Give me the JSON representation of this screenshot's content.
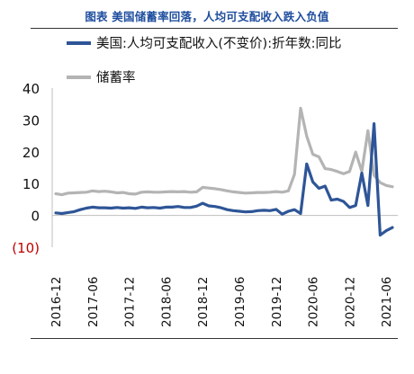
{
  "title": "图表  美国储蓄率回落，人均可支配收入跌入负值",
  "colors": {
    "title": "#1f4e9e",
    "income": "#2e5597",
    "saving": "#b4b4b4",
    "negative_tick": "#c00000",
    "axis": "#bfbfbf"
  },
  "chart_data": {
    "type": "line",
    "title": "",
    "xlabel": "",
    "ylabel": "",
    "ylim": [
      -10,
      40
    ],
    "yticks": [
      40,
      30,
      20,
      10,
      0,
      -10
    ],
    "ytick_labels": [
      "40",
      "30",
      "20",
      "10",
      "0",
      "(10)"
    ],
    "x_tick_labels": [
      "2016-12",
      "2017-06",
      "2017-12",
      "2018-06",
      "2018-12",
      "2019-06",
      "2019-12",
      "2020-06",
      "2020-12",
      "2021-06"
    ],
    "x": [
      "2016-12",
      "2017-01",
      "2017-02",
      "2017-03",
      "2017-04",
      "2017-05",
      "2017-06",
      "2017-07",
      "2017-08",
      "2017-09",
      "2017-10",
      "2017-11",
      "2017-12",
      "2018-01",
      "2018-02",
      "2018-03",
      "2018-04",
      "2018-05",
      "2018-06",
      "2018-07",
      "2018-08",
      "2018-09",
      "2018-10",
      "2018-11",
      "2018-12",
      "2019-01",
      "2019-02",
      "2019-03",
      "2019-04",
      "2019-05",
      "2019-06",
      "2019-07",
      "2019-08",
      "2019-09",
      "2019-10",
      "2019-11",
      "2019-12",
      "2020-01",
      "2020-02",
      "2020-03",
      "2020-04",
      "2020-05",
      "2020-06",
      "2020-07",
      "2020-08",
      "2020-09",
      "2020-10",
      "2020-11",
      "2020-12",
      "2021-01",
      "2021-02",
      "2021-03",
      "2021-04",
      "2021-05",
      "2021-06",
      "2021-07"
    ],
    "series": [
      {
        "name": "美国:人均可支配收入(不变价):折年数:同比",
        "values": [
          0.8,
          0.6,
          0.9,
          1.2,
          1.8,
          2.3,
          2.6,
          2.4,
          2.4,
          2.3,
          2.5,
          2.3,
          2.4,
          2.2,
          2.6,
          2.4,
          2.5,
          2.3,
          2.6,
          2.6,
          2.8,
          2.5,
          2.5,
          2.9,
          3.8,
          3.0,
          2.8,
          2.4,
          1.8,
          1.5,
          1.3,
          1.1,
          1.2,
          1.5,
          1.6,
          1.5,
          1.9,
          0.4,
          1.3,
          1.8,
          0.6,
          16.2,
          10.5,
          8.5,
          9.2,
          4.8,
          5.1,
          4.4,
          2.5,
          3.1,
          13.3,
          3.1,
          28.8,
          -6.2,
          -4.8,
          -3.8
        ]
      },
      {
        "name": "储蓄率",
        "values": [
          6.8,
          6.5,
          7.0,
          7.1,
          7.2,
          7.3,
          7.7,
          7.5,
          7.6,
          7.4,
          7.1,
          7.2,
          6.8,
          6.7,
          7.3,
          7.4,
          7.3,
          7.3,
          7.4,
          7.5,
          7.4,
          7.5,
          7.3,
          7.4,
          8.8,
          8.6,
          8.4,
          8.1,
          7.7,
          7.4,
          7.2,
          7.0,
          7.1,
          7.2,
          7.2,
          7.3,
          7.5,
          7.3,
          7.7,
          12.9,
          33.7,
          24.9,
          19.2,
          18.4,
          14.7,
          14.4,
          13.8,
          13.1,
          13.8,
          19.9,
          13.8,
          26.6,
          12.6,
          10.3,
          9.4,
          9.0
        ]
      }
    ],
    "legend": "top-left",
    "grid": false
  }
}
